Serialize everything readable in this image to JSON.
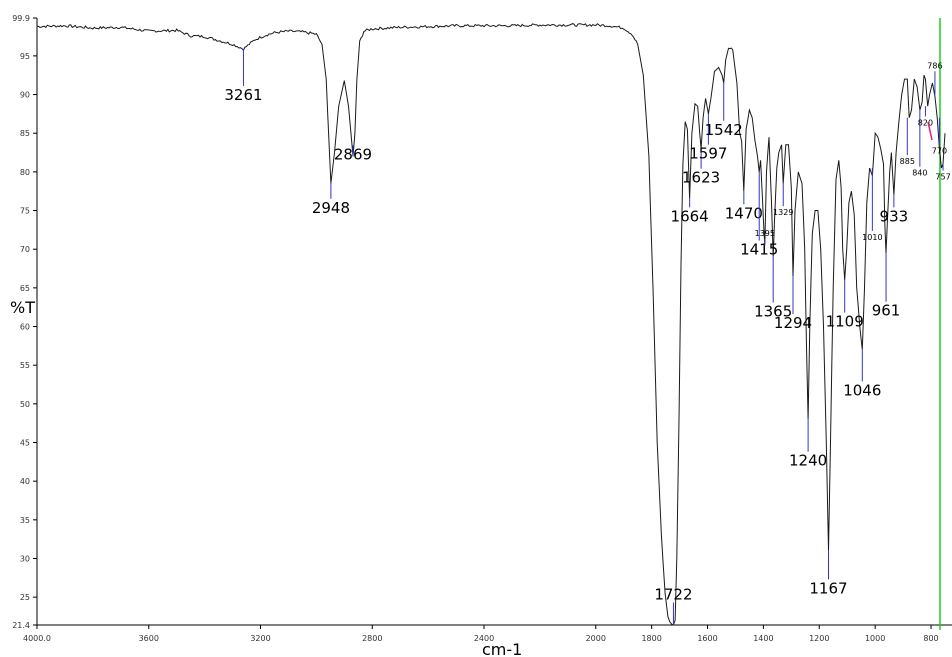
{
  "chart_data": {
    "type": "line",
    "xlabel": "cm-1",
    "ylabel": "%T",
    "xlim": [
      4000,
      750
    ],
    "ylim": [
      21.4,
      99.9
    ],
    "x_tick_labels": [
      "4000.0",
      "3600",
      "3200",
      "2800",
      "2400",
      "2000",
      "1800",
      "1600",
      "1400",
      "1200",
      "1000",
      "800"
    ],
    "y_tick_labels": [
      "99.9",
      "95",
      "90",
      "85",
      "80",
      "75",
      "70",
      "65",
      "60",
      "55",
      "50",
      "45",
      "40",
      "35",
      "30",
      "25",
      "21.4"
    ],
    "colors": {
      "spectrum": "#1a1a1a",
      "peak_marker": "#3333cc",
      "frame": "#000000",
      "right_marker": "#22cc22",
      "accent_mark": "#e0207a"
    },
    "spectrum": {
      "x": [
        4000,
        3900,
        3800,
        3700,
        3600,
        3500,
        3450,
        3400,
        3350,
        3300,
        3261,
        3220,
        3180,
        3150,
        3100,
        3050,
        3000,
        2980,
        2965,
        2948,
        2935,
        2920,
        2900,
        2885,
        2875,
        2869,
        2862,
        2855,
        2845,
        2830,
        2800,
        2750,
        2700,
        2600,
        2500,
        2400,
        2300,
        2200,
        2100,
        2000,
        1950,
        1900,
        1870,
        1850,
        1830,
        1810,
        1795,
        1780,
        1765,
        1752,
        1742,
        1735,
        1728,
        1722,
        1716,
        1710,
        1702,
        1695,
        1688,
        1680,
        1672,
        1664,
        1656,
        1645,
        1635,
        1628,
        1623,
        1616,
        1607,
        1597,
        1588,
        1575,
        1560,
        1548,
        1542,
        1535,
        1525,
        1510,
        1495,
        1485,
        1478,
        1470,
        1462,
        1450,
        1440,
        1430,
        1421,
        1415,
        1410,
        1404,
        1399,
        1395,
        1389,
        1380,
        1371,
        1365,
        1360,
        1352,
        1345,
        1335,
        1329,
        1320,
        1310,
        1300,
        1294,
        1287,
        1275,
        1262,
        1252,
        1246,
        1240,
        1234,
        1225,
        1215,
        1205,
        1195,
        1185,
        1175,
        1167,
        1160,
        1150,
        1140,
        1130,
        1122,
        1116,
        1109,
        1102,
        1094,
        1085,
        1075,
        1066,
        1055,
        1046,
        1038,
        1030,
        1020,
        1010,
        1000,
        990,
        980,
        970,
        965,
        961,
        955,
        948,
        942,
        933,
        925,
        915,
        905,
        895,
        885,
        878,
        870,
        860,
        850,
        840,
        832,
        825,
        820,
        812,
        805,
        795,
        786,
        778,
        770,
        763,
        757,
        750
      ],
      "y": [
        98.8,
        98.9,
        98.6,
        98.7,
        98.2,
        98.3,
        97.6,
        97.5,
        97.0,
        96.5,
        95.9,
        97.1,
        97.7,
        98.0,
        98.2,
        98.1,
        97.8,
        96.5,
        92.0,
        78.5,
        82.5,
        88.5,
        91.8,
        88.5,
        84.5,
        82.0,
        85.0,
        92.0,
        96.8,
        98.2,
        98.5,
        98.6,
        98.7,
        98.8,
        98.9,
        98.9,
        98.9,
        99.0,
        99.0,
        99.0,
        98.9,
        98.6,
        97.8,
        96.5,
        92.5,
        82.0,
        65.0,
        45.0,
        33.0,
        25.5,
        22.5,
        21.8,
        21.5,
        21.4,
        22.0,
        30.0,
        48.0,
        68.0,
        81.0,
        86.5,
        85.5,
        76.5,
        85.0,
        88.8,
        88.5,
        85.0,
        83.0,
        87.0,
        89.5,
        87.5,
        89.5,
        93.0,
        93.5,
        92.5,
        91.5,
        94.5,
        96.0,
        95.8,
        91.5,
        85.0,
        84.0,
        77.5,
        85.5,
        88.0,
        87.0,
        84.0,
        82.0,
        80.0,
        81.5,
        77.0,
        73.0,
        70.5,
        80.0,
        84.5,
        76.0,
        69.0,
        74.0,
        80.5,
        82.5,
        83.5,
        78.5,
        83.5,
        83.5,
        78.0,
        66.5,
        75.0,
        80.0,
        78.5,
        70.0,
        58.0,
        48.0,
        60.0,
        72.0,
        75.0,
        75.0,
        70.0,
        60.0,
        45.0,
        31.0,
        45.0,
        65.0,
        79.0,
        81.5,
        78.0,
        70.0,
        66.0,
        70.0,
        76.0,
        77.5,
        74.5,
        65.0,
        60.0,
        57.0,
        65.0,
        76.0,
        80.5,
        79.5,
        85.0,
        84.5,
        83.0,
        81.0,
        73.0,
        69.5,
        74.5,
        80.0,
        82.5,
        77.0,
        82.5,
        86.5,
        90.0,
        92.0,
        92.0,
        87.0,
        88.0,
        92.0,
        91.0,
        88.0,
        89.0,
        92.5,
        92.0,
        88.5,
        90.0,
        91.5,
        89.8,
        87.0,
        83.0,
        80.5,
        81.0,
        85.0
      ]
    },
    "peaks": [
      {
        "label": "3261",
        "x": 3261,
        "y": 95.9,
        "size": "big",
        "ly": 89.3
      },
      {
        "label": "2948",
        "x": 2948,
        "y": 78.5,
        "size": "big",
        "ly": 74.7
      },
      {
        "label": "2869",
        "x": 2869,
        "y": 82.0,
        "size": "big",
        "ly": 81.6
      },
      {
        "label": "1722",
        "x": 1722,
        "y": 21.4,
        "size": "big",
        "ly": 24.7
      },
      {
        "label": "1664",
        "x": 1664,
        "y": 76.5,
        "size": "big",
        "ly": 73.6
      },
      {
        "label": "1623",
        "x": 1623,
        "y": 83.0,
        "size": "big",
        "ly": 78.6
      },
      {
        "label": "1597",
        "x": 1597,
        "y": 87.5,
        "size": "big",
        "ly": 81.7
      },
      {
        "label": "1542",
        "x": 1542,
        "y": 91.5,
        "size": "big",
        "ly": 84.8
      },
      {
        "label": "1470",
        "x": 1470,
        "y": 77.5,
        "size": "big",
        "ly": 74.0
      },
      {
        "label": "1415",
        "x": 1415,
        "y": 80.0,
        "size": "big",
        "ly": 69.3
      },
      {
        "label": "1395",
        "x": 1395,
        "y": 70.5,
        "size": "small",
        "ly": 71.7
      },
      {
        "label": "1365",
        "x": 1365,
        "y": 69.0,
        "size": "big",
        "ly": 61.3
      },
      {
        "label": "1329",
        "x": 1329,
        "y": 78.5,
        "size": "small",
        "ly": 74.4
      },
      {
        "label": "1294",
        "x": 1294,
        "y": 66.5,
        "size": "big",
        "ly": 59.8
      },
      {
        "label": "1240",
        "x": 1240,
        "y": 48.0,
        "size": "big",
        "ly": 42.0
      },
      {
        "label": "1167",
        "x": 1167,
        "y": 31.0,
        "size": "big",
        "ly": 25.5
      },
      {
        "label": "1109",
        "x": 1109,
        "y": 66.0,
        "size": "big",
        "ly": 60.0
      },
      {
        "label": "1046",
        "x": 1046,
        "y": 57.0,
        "size": "big",
        "ly": 51.1
      },
      {
        "label": "1010",
        "x": 1010,
        "y": 80.5,
        "size": "small",
        "ly": 71.2
      },
      {
        "label": "961",
        "x": 961,
        "y": 69.5,
        "size": "big",
        "ly": 61.4
      },
      {
        "label": "933",
        "x": 933,
        "y": 77.0,
        "size": "big",
        "ly": 73.6
      },
      {
        "label": "885",
        "x": 885,
        "y": 87.0,
        "size": "small",
        "ly": 81.0
      },
      {
        "label": "840",
        "x": 840,
        "y": 88.0,
        "size": "small",
        "ly": 79.5
      },
      {
        "label": "820",
        "x": 820,
        "y": 88.5,
        "size": "small",
        "ly": 86.0
      },
      {
        "label": "786",
        "x": 786,
        "y": 90.0,
        "size": "small",
        "ly": 93.4
      },
      {
        "label": "770",
        "x": 770,
        "y": 87.0,
        "size": "small",
        "ly": 82.4
      },
      {
        "label": "757",
        "x": 757,
        "y": 81.0,
        "size": "small",
        "ly": 79.0
      }
    ]
  }
}
